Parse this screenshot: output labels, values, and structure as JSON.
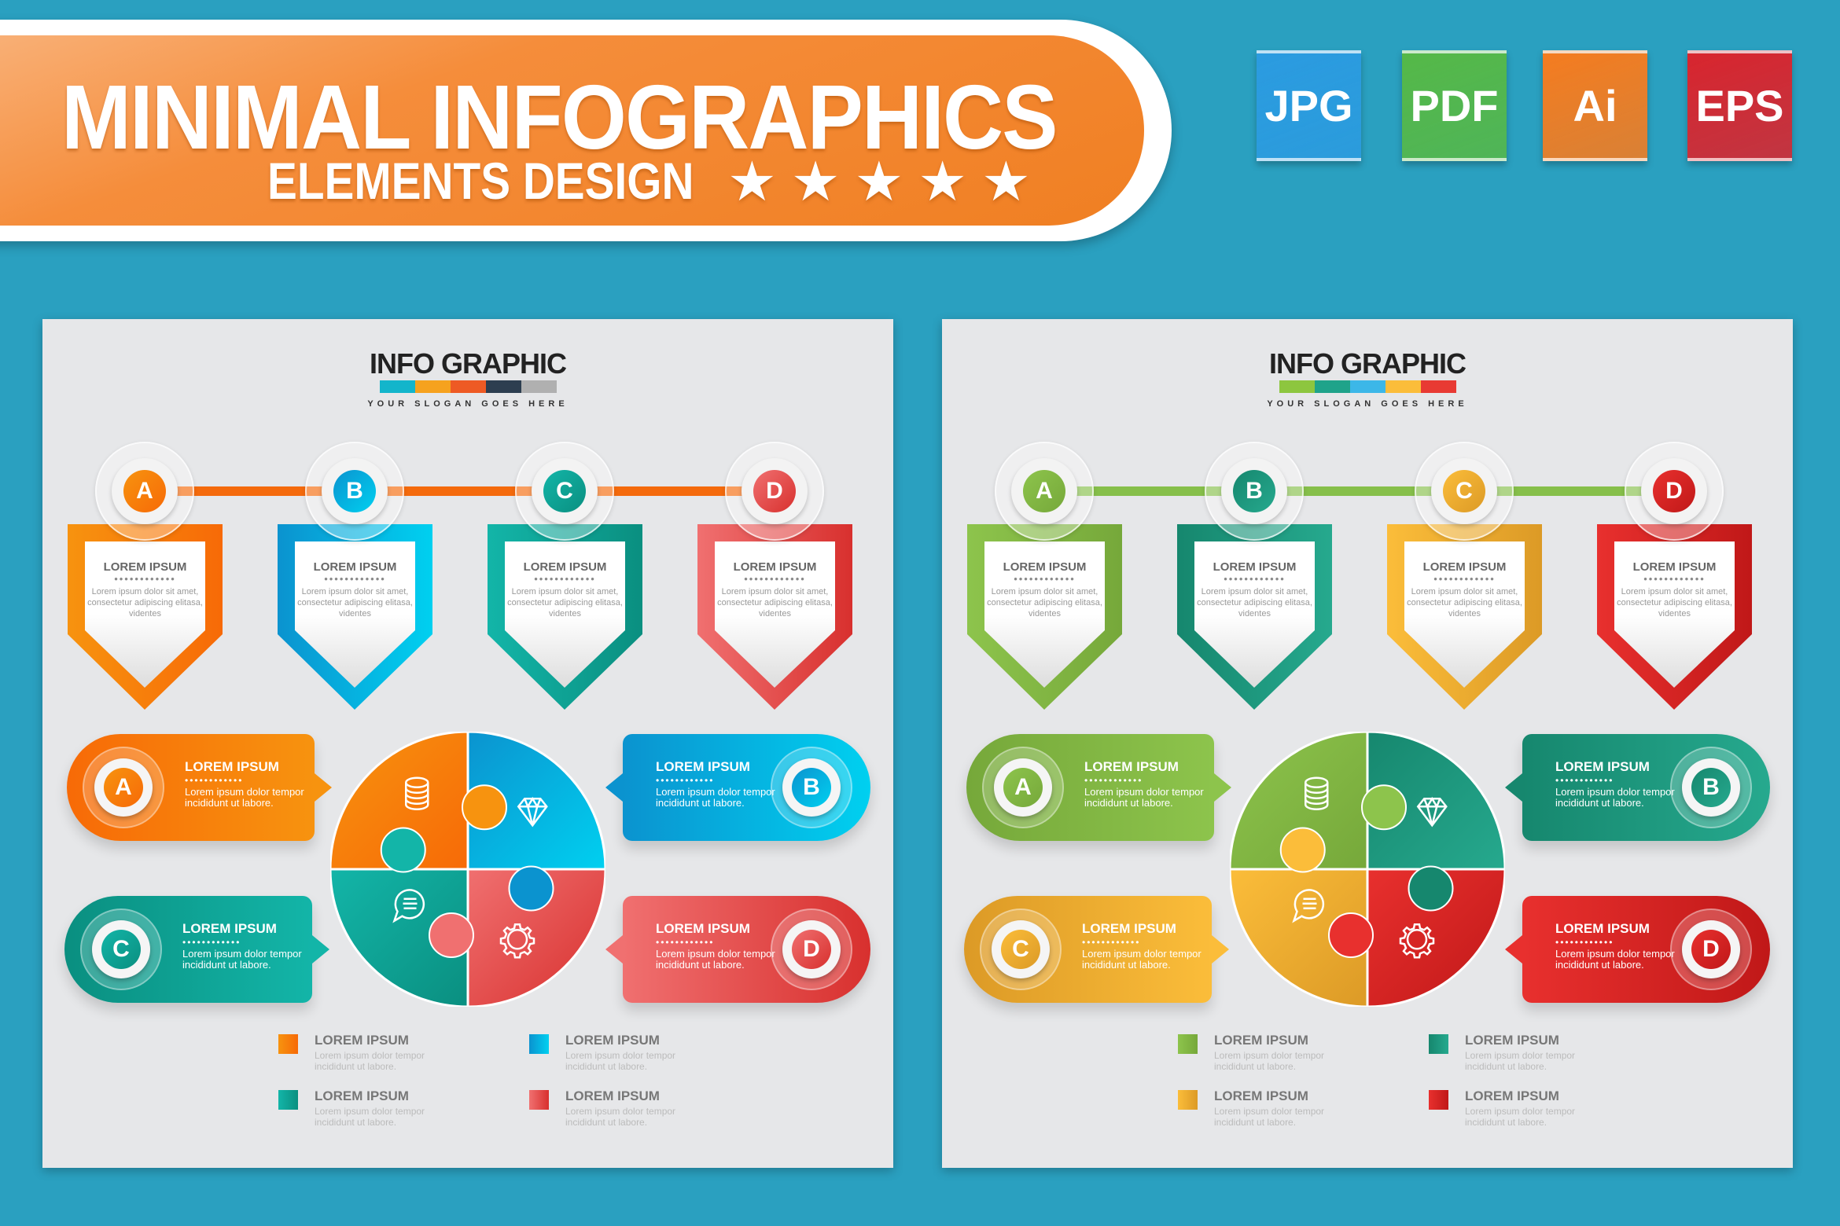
{
  "banner": {
    "title": "MINIMAL INFOGRAPHICS",
    "subtitle": "ELEMENTS DESIGN",
    "stars": 5,
    "star_glyph": "★★★★★"
  },
  "formats": [
    {
      "label": "JPG",
      "color": "#2b9be0"
    },
    {
      "label": "PDF",
      "color": "#55b848"
    },
    {
      "label": "Ai",
      "color": "#f47c20"
    },
    {
      "label": "EPS",
      "color": "#d8252e"
    }
  ],
  "panels": [
    {
      "title": "INFO GRAPHIC",
      "slogan": "YOUR SLOGAN GOES HERE",
      "title_bar_colors": [
        "#13b5cb",
        "#f6a21e",
        "#ee5a24",
        "#2d3e50",
        "#b0b0b0"
      ],
      "timeline_color": "#f46a0c",
      "steps": [
        {
          "letter": "A",
          "color": "#f7930f",
          "color2": "#f76a07",
          "icon": "coins-icon"
        },
        {
          "letter": "B",
          "color": "#0b93cf",
          "color2": "#00d0f0",
          "icon": "diamond-icon"
        },
        {
          "letter": "C",
          "color": "#13b5a8",
          "color2": "#0a8f80",
          "icon": "chat-icon"
        },
        {
          "letter": "D",
          "color": "#f07070",
          "color2": "#d8302e",
          "icon": "gear-icon"
        }
      ],
      "cards": [
        {
          "title": "LOREM IPSUM",
          "body": "Lorem ipsum dolor sit amet, consectetur adipiscing elitasa, videntes"
        },
        {
          "title": "LOREM IPSUM",
          "body": "Lorem ipsum dolor sit amet, consectetur adipiscing elitasa, videntes"
        },
        {
          "title": "LOREM IPSUM",
          "body": "Lorem ipsum dolor sit amet, consectetur adipiscing elitasa, videntes"
        },
        {
          "title": "LOREM IPSUM",
          "body": "Lorem ipsum dolor sit amet, consectetur adipiscing elitasa, videntes"
        }
      ],
      "callouts": [
        {
          "title": "LOREM IPSUM",
          "body": "Lorem ipsum dolor tempor incididunt ut labore."
        },
        {
          "title": "LOREM IPSUM",
          "body": "Lorem ipsum dolor tempor incididunt ut labore."
        },
        {
          "title": "LOREM IPSUM",
          "body": "Lorem ipsum dolor tempor incididunt ut labore."
        },
        {
          "title": "LOREM IPSUM",
          "body": "Lorem ipsum dolor tempor incididunt ut labore."
        }
      ],
      "legend": [
        {
          "title": "LOREM IPSUM",
          "body": "Lorem ipsum dolor  tempor incididunt ut labore."
        },
        {
          "title": "LOREM IPSUM",
          "body": "Lorem ipsum dolor  tempor incididunt ut labore."
        },
        {
          "title": "LOREM IPSUM",
          "body": "Lorem ipsum dolor  tempor incididunt ut labore."
        },
        {
          "title": "LOREM IPSUM",
          "body": "Lorem ipsum dolor  tempor incididunt ut labore."
        }
      ]
    },
    {
      "title": "INFO GRAPHIC",
      "slogan": "YOUR SLOGAN GOES HERE",
      "title_bar_colors": [
        "#8dc63f",
        "#1fa38a",
        "#3cb7e8",
        "#fbbd3a",
        "#e83a33"
      ],
      "timeline_color": "#86bf4a",
      "steps": [
        {
          "letter": "A",
          "color": "#8dc44c",
          "color2": "#76a83a",
          "icon": "coins-icon"
        },
        {
          "letter": "B",
          "color": "#16876e",
          "color2": "#26a98e",
          "icon": "diamond-icon"
        },
        {
          "letter": "C",
          "color": "#fbbd3a",
          "color2": "#dc9a26",
          "icon": "chat-icon"
        },
        {
          "letter": "D",
          "color": "#e8302e",
          "color2": "#c01818",
          "icon": "gear-icon"
        }
      ],
      "cards": [
        {
          "title": "LOREM IPSUM",
          "body": "Lorem ipsum dolor sit amet, consectetur adipiscing elitasa, videntes"
        },
        {
          "title": "LOREM IPSUM",
          "body": "Lorem ipsum dolor sit amet, consectetur adipiscing elitasa, videntes"
        },
        {
          "title": "LOREM IPSUM",
          "body": "Lorem ipsum dolor sit amet, consectetur adipiscing elitasa, videntes"
        },
        {
          "title": "LOREM IPSUM",
          "body": "Lorem ipsum dolor sit amet, consectetur adipiscing elitasa, videntes"
        }
      ],
      "callouts": [
        {
          "title": "LOREM IPSUM",
          "body": "Lorem ipsum dolor tempor incididunt ut labore."
        },
        {
          "title": "LOREM IPSUM",
          "body": "Lorem ipsum dolor tempor incididunt ut labore."
        },
        {
          "title": "LOREM IPSUM",
          "body": "Lorem ipsum dolor tempor incididunt ut labore."
        },
        {
          "title": "LOREM IPSUM",
          "body": "Lorem ipsum dolor tempor incididunt ut labore."
        }
      ],
      "legend": [
        {
          "title": "LOREM IPSUM",
          "body": "Lorem ipsum dolor  tempor incididunt ut labore."
        },
        {
          "title": "LOREM IPSUM",
          "body": "Lorem ipsum dolor  tempor incididunt ut labore."
        },
        {
          "title": "LOREM IPSUM",
          "body": "Lorem ipsum dolor  tempor incididunt ut labore."
        },
        {
          "title": "LOREM IPSUM",
          "body": "Lorem ipsum dolor  tempor incididunt ut labore."
        }
      ]
    }
  ]
}
